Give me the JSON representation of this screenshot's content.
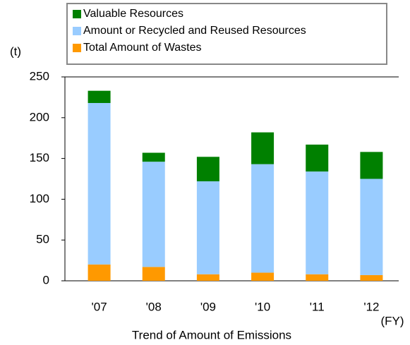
{
  "chart_data": {
    "type": "stacked_bar",
    "title": "Trend of Amount of Emissions",
    "y_label": "(t)",
    "x_label": "(FY)",
    "categories": [
      "'07",
      "'08",
      "'09",
      "'10",
      "'11",
      "'12"
    ],
    "series": [
      {
        "name": "Total Amount of Wastes",
        "color": "#ff9900",
        "values": [
          20,
          17,
          8,
          10,
          8,
          7
        ]
      },
      {
        "name": "Amount or Recycled and Reused Resources",
        "color": "#99ccff",
        "values": [
          198,
          129,
          114,
          133,
          126,
          118
        ]
      },
      {
        "name": "Valuable Resources",
        "color": "#008000",
        "values": [
          15,
          11,
          30,
          39,
          33,
          33
        ]
      }
    ],
    "ylim": [
      0,
      250
    ],
    "yticks": [
      0,
      50,
      100,
      150,
      200,
      250
    ],
    "grid": false
  }
}
